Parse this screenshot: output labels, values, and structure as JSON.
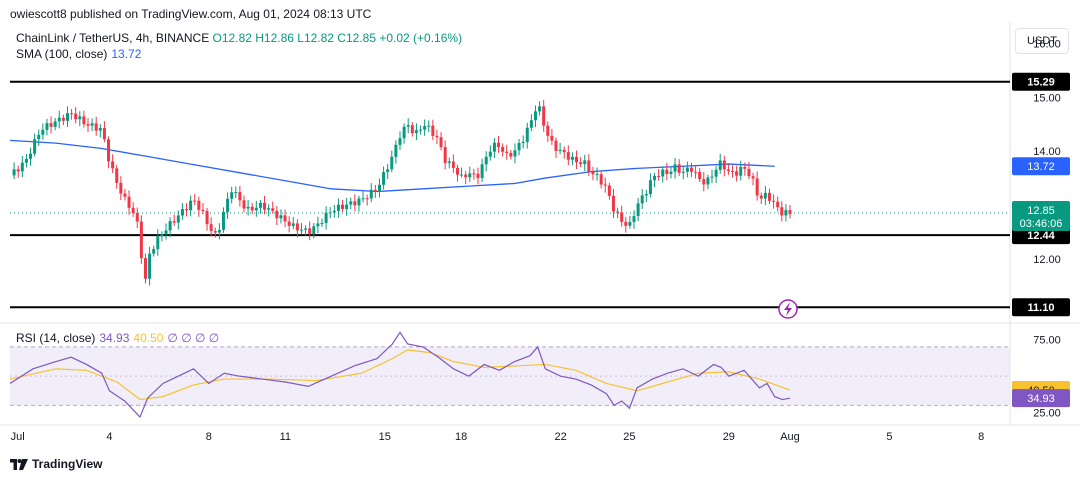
{
  "header": {
    "attribution": "owiescott8 published on TradingView.com, Aug 01, 2024 08:13 UTC",
    "symbol": "ChainLink / TetherUS, 4h, BINANCE",
    "ohlc": "O12.82 H12.86 L12.82 C12.85 +0.02 (+0.16%)",
    "sma_label": "SMA (100, close)",
    "sma_value": "13.72",
    "currency": "USDT"
  },
  "rsi_legend": {
    "label": "RSI (14, close)",
    "rsi": "34.93",
    "ma": "40.50",
    "extra": "∅ ∅ ∅ ∅"
  },
  "footer": {
    "logo": "TradingView"
  },
  "colors": {
    "up": "#089981",
    "down": "#f23645",
    "sma": "#2962ff",
    "rsi": "#7e57c2",
    "rsi_ma": "#f7c22e",
    "band": "#ede7f6"
  },
  "chart_data": [
    {
      "type": "candlestick",
      "title": "ChainLink / TetherUS, 4h, BINANCE",
      "ylim": [
        10.9,
        16.4
      ],
      "y_ticks": [
        "16.00",
        "15.00",
        "14.00",
        "12.00"
      ],
      "x_ticks": [
        "Jul",
        "4",
        "8",
        "11",
        "15",
        "18",
        "22",
        "25",
        "29",
        "Aug",
        "5",
        "8"
      ],
      "horizontal_levels": [
        "15.29",
        "12.44",
        "11.10"
      ],
      "price_badges": {
        "last_price": "12.85",
        "countdown": "03:46:06",
        "sma": "13.72"
      },
      "price_path": [
        [
          0,
          13.55
        ],
        [
          2,
          13.8
        ],
        [
          4,
          14.4
        ],
        [
          6,
          14.55
        ],
        [
          8,
          14.7
        ],
        [
          10,
          14.5
        ],
        [
          12,
          14.4
        ],
        [
          13,
          13.8
        ],
        [
          14,
          13.4
        ],
        [
          15,
          13.1
        ],
        [
          16,
          12.9
        ],
        [
          17,
          12.5
        ],
        [
          17.5,
          11.3
        ],
        [
          18,
          12.0
        ],
        [
          19,
          12.3
        ],
        [
          20,
          12.5
        ],
        [
          22,
          12.8
        ],
        [
          24,
          13.1
        ],
        [
          25,
          12.9
        ],
        [
          26,
          12.6
        ],
        [
          27,
          12.4
        ],
        [
          28,
          12.9
        ],
        [
          29,
          13.3
        ],
        [
          30,
          13.1
        ],
        [
          31,
          12.9
        ],
        [
          33,
          13.0
        ],
        [
          35,
          12.8
        ],
        [
          37,
          12.6
        ],
        [
          39,
          12.5
        ],
        [
          40,
          12.6
        ],
        [
          42,
          12.9
        ],
        [
          44,
          13.0
        ],
        [
          46,
          13.1
        ],
        [
          48,
          13.3
        ],
        [
          50,
          13.9
        ],
        [
          51,
          14.3
        ],
        [
          52,
          14.5
        ],
        [
          53,
          14.3
        ],
        [
          54,
          14.5
        ],
        [
          55,
          14.4
        ],
        [
          56,
          14.2
        ],
        [
          57,
          13.8
        ],
        [
          58,
          13.7
        ],
        [
          59,
          13.5
        ],
        [
          60,
          13.6
        ],
        [
          61,
          13.5
        ],
        [
          62,
          13.8
        ],
        [
          63,
          14.1
        ],
        [
          64,
          14.1
        ],
        [
          65,
          13.9
        ],
        [
          66,
          14.0
        ],
        [
          67,
          14.2
        ],
        [
          68,
          14.5
        ],
        [
          69,
          14.9
        ],
        [
          70,
          14.4
        ],
        [
          71,
          14.1
        ],
        [
          72,
          14.0
        ],
        [
          73,
          13.9
        ],
        [
          74,
          13.8
        ],
        [
          75,
          13.8
        ],
        [
          76,
          13.6
        ],
        [
          77,
          13.5
        ],
        [
          78,
          13.3
        ],
        [
          79,
          12.9
        ],
        [
          80,
          12.7
        ],
        [
          81,
          12.6
        ],
        [
          82,
          13.0
        ],
        [
          83,
          13.2
        ],
        [
          84,
          13.5
        ],
        [
          85,
          13.6
        ],
        [
          86,
          13.6
        ],
        [
          87,
          13.7
        ],
        [
          88,
          13.6
        ],
        [
          89,
          13.7
        ],
        [
          90,
          13.5
        ],
        [
          91,
          13.4
        ],
        [
          92,
          13.6
        ],
        [
          93,
          13.8
        ],
        [
          94,
          13.6
        ],
        [
          95,
          13.6
        ],
        [
          96,
          13.7
        ],
        [
          97,
          13.5
        ],
        [
          98,
          13.1
        ],
        [
          99,
          13.2
        ],
        [
          100,
          13.0
        ],
        [
          101,
          12.85
        ],
        [
          102,
          12.85
        ]
      ],
      "sma_path": [
        [
          0,
          14.2
        ],
        [
          6,
          14.15
        ],
        [
          12,
          14.05
        ],
        [
          18,
          13.9
        ],
        [
          24,
          13.75
        ],
        [
          30,
          13.6
        ],
        [
          36,
          13.45
        ],
        [
          42,
          13.3
        ],
        [
          48,
          13.25
        ],
        [
          54,
          13.3
        ],
        [
          60,
          13.35
        ],
        [
          66,
          13.4
        ],
        [
          70,
          13.5
        ],
        [
          76,
          13.62
        ],
        [
          82,
          13.68
        ],
        [
          88,
          13.72
        ],
        [
          94,
          13.76
        ],
        [
          100,
          13.72
        ]
      ]
    },
    {
      "type": "line",
      "title": "RSI (14, close)",
      "ylim": [
        20,
        85
      ],
      "y_ticks": [
        "75.00",
        "25.00"
      ],
      "band": [
        30,
        70
      ],
      "price_badges": {
        "ma": "40.50",
        "rsi": "34.93"
      },
      "series": [
        {
          "name": "RSI (14, close)",
          "values": [
            [
              0,
              45
            ],
            [
              3,
              55
            ],
            [
              6,
              60
            ],
            [
              8,
              63
            ],
            [
              10,
              58
            ],
            [
              12,
              52
            ],
            [
              13,
              40
            ],
            [
              15,
              33
            ],
            [
              17,
              22
            ],
            [
              18,
              35
            ],
            [
              20,
              45
            ],
            [
              22,
              50
            ],
            [
              24,
              55
            ],
            [
              26,
              45
            ],
            [
              28,
              52
            ],
            [
              30,
              50
            ],
            [
              33,
              48
            ],
            [
              36,
              46
            ],
            [
              39,
              43
            ],
            [
              42,
              50
            ],
            [
              45,
              57
            ],
            [
              48,
              62
            ],
            [
              50,
              72
            ],
            [
              51,
              80
            ],
            [
              52,
              72
            ],
            [
              54,
              70
            ],
            [
              56,
              63
            ],
            [
              58,
              55
            ],
            [
              60,
              50
            ],
            [
              62,
              58
            ],
            [
              64,
              54
            ],
            [
              66,
              60
            ],
            [
              68,
              64
            ],
            [
              69,
              70
            ],
            [
              70,
              55
            ],
            [
              72,
              50
            ],
            [
              74,
              48
            ],
            [
              76,
              44
            ],
            [
              78,
              38
            ],
            [
              79,
              30
            ],
            [
              80,
              33
            ],
            [
              81,
              28
            ],
            [
              82,
              42
            ],
            [
              84,
              48
            ],
            [
              86,
              52
            ],
            [
              88,
              55
            ],
            [
              90,
              50
            ],
            [
              92,
              58
            ],
            [
              93,
              56
            ],
            [
              94,
              50
            ],
            [
              96,
              54
            ],
            [
              98,
              42
            ],
            [
              99,
              45
            ],
            [
              100,
              36
            ],
            [
              101,
              34
            ],
            [
              102,
              34.93
            ]
          ]
        },
        {
          "name": "RSI-based MA",
          "values": [
            [
              0,
              48
            ],
            [
              6,
              55
            ],
            [
              10,
              54
            ],
            [
              14,
              46
            ],
            [
              17,
              34
            ],
            [
              20,
              36
            ],
            [
              24,
              44
            ],
            [
              28,
              48
            ],
            [
              34,
              48
            ],
            [
              40,
              47
            ],
            [
              46,
              52
            ],
            [
              50,
              62
            ],
            [
              52,
              68
            ],
            [
              55,
              66
            ],
            [
              58,
              60
            ],
            [
              62,
              56
            ],
            [
              66,
              57
            ],
            [
              70,
              58
            ],
            [
              74,
              54
            ],
            [
              78,
              45
            ],
            [
              82,
              40
            ],
            [
              86,
              46
            ],
            [
              90,
              52
            ],
            [
              94,
              53
            ],
            [
              98,
              48
            ],
            [
              102,
              40.5
            ]
          ]
        }
      ]
    }
  ]
}
